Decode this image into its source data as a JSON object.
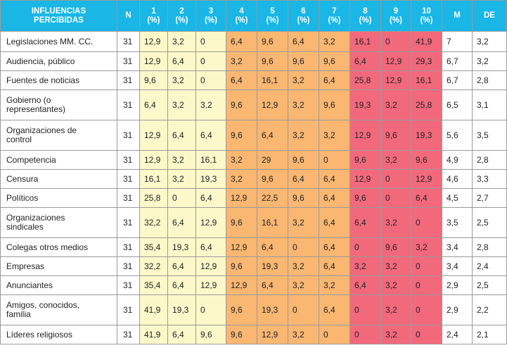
{
  "headers": [
    "INFLUENCIAS PERCIBIDAS",
    "N",
    "1 (%)",
    "2 (%)",
    "3 (%)",
    "4 (%)",
    "5 (%)",
    "6 (%)",
    "7 (%)",
    "8 (%)",
    "9 (%)",
    "10 (%)",
    "M",
    "DE"
  ],
  "header_lines": [
    [
      "INFLUENCIAS",
      "PERCIBIDAS"
    ],
    [
      "N",
      ""
    ],
    [
      "1",
      "(%)"
    ],
    [
      "2",
      "(%)"
    ],
    [
      "3",
      "(%)"
    ],
    [
      "4",
      "(%)"
    ],
    [
      "5",
      "(%)"
    ],
    [
      "6",
      "(%)"
    ],
    [
      "7",
      "(%)"
    ],
    [
      "8",
      "(%)"
    ],
    [
      "9",
      "(%)"
    ],
    [
      "10",
      "(%)"
    ],
    [
      "M",
      ""
    ],
    [
      "DE",
      ""
    ]
  ],
  "colors": {
    "header": "#19b6e6",
    "group_1_3": "#fcf8c9",
    "group_4_7": "#f9b772",
    "group_8_10": "#f3697c"
  },
  "rows": [
    {
      "label": "Legislaciones MM. CC.",
      "n": "31",
      "v": [
        "12,9",
        "3,2",
        "0",
        "6,4",
        "9,6",
        "6,4",
        "3,2",
        "16,1",
        "0",
        "41,9"
      ],
      "m": "7",
      "de": "3,2"
    },
    {
      "label": "Audiencia, público",
      "n": "31",
      "v": [
        "12,9",
        "6,4",
        "0",
        "3,2",
        "9,6",
        "9,6",
        "9,6",
        "6,4",
        "12,9",
        "29,3"
      ],
      "m": "6,7",
      "de": "3,2"
    },
    {
      "label": "Fuentes de noticias",
      "n": "31",
      "v": [
        "9,6",
        "3,2",
        "0",
        "6,4",
        "16,1",
        "3,2",
        "6,4",
        "25,8",
        "12,9",
        "16,1"
      ],
      "m": "6,7",
      "de": "2,8"
    },
    {
      "label": "Gobierno (o representantes)",
      "n": "31",
      "v": [
        "6,4",
        "3,2",
        "3,2",
        "9,6",
        "12,9",
        "3,2",
        "9,6",
        "19,3",
        "3,2",
        "25,8"
      ],
      "m": "6,5",
      "de": "3,1"
    },
    {
      "label": "Organizaciones de control",
      "n": "31",
      "v": [
        "12,9",
        "6,4",
        "6,4",
        "9,6",
        "6,4",
        "3,2",
        "3,2",
        "12,9",
        "9,6",
        "19,3"
      ],
      "m": "5,6",
      "de": "3,5"
    },
    {
      "label": "Competencia",
      "n": "31",
      "v": [
        "12,9",
        "3,2",
        "16,1",
        "3,2",
        "29",
        "9,6",
        "0",
        "9,6",
        "3,2",
        "9,6"
      ],
      "m": "4,9",
      "de": "2,8"
    },
    {
      "label": "Censura",
      "n": "31",
      "v": [
        "16,1",
        "3,2",
        "19,3",
        "3,2",
        "9,6",
        "6,4",
        "6,4",
        "12,9",
        "0",
        "12,9"
      ],
      "m": "4,6",
      "de": "3,3"
    },
    {
      "label": "Políticos",
      "n": "31",
      "v": [
        "25,8",
        "0",
        "6,4",
        "12,9",
        "22,5",
        "9,6",
        "6,4",
        "9,6",
        "0",
        "6,4"
      ],
      "m": "4,5",
      "de": "2,7"
    },
    {
      "label": "Organizaciones sindicales",
      "n": "31",
      "v": [
        "32,2",
        "6,4",
        "12,9",
        "9,6",
        "16,1",
        "3,2",
        "6,4",
        "6,4",
        "3,2",
        "0"
      ],
      "m": "3,5",
      "de": "2,5"
    },
    {
      "label": "Colegas otros medios",
      "n": "31",
      "v": [
        "35,4",
        "19,3",
        "6,4",
        "12,9",
        "6,4",
        "0",
        "6,4",
        "0",
        "9,6",
        "3,2"
      ],
      "m": "3,4",
      "de": "2,8"
    },
    {
      "label": "Empresas",
      "n": "31",
      "v": [
        "32,2",
        "6,4",
        "12,9",
        "9,6",
        "19,3",
        "3,2",
        "6,4",
        "3,2",
        "3,2",
        "0"
      ],
      "m": "3,4",
      "de": "2,4"
    },
    {
      "label": "Anunciantes",
      "n": "31",
      "v": [
        "35,4",
        "6,4",
        "12,9",
        "12,9",
        "6,4",
        "3,2",
        "3,2",
        "6,4",
        "3,2",
        "0"
      ],
      "m": "2,9",
      "de": "2,5"
    },
    {
      "label": "Amigos, conocidos, familia",
      "n": "31",
      "v": [
        "41,9",
        "19,3",
        "0",
        "9,6",
        "19,3",
        "0",
        "6,4",
        "0",
        "3,2",
        "0"
      ],
      "m": "2,9",
      "de": "2,2"
    },
    {
      "label": "Líderes religiosos",
      "n": "31",
      "v": [
        "41,9",
        "6,4",
        "9,6",
        "9,6",
        "12,9",
        "3,2",
        "0",
        "0",
        "3,2",
        "0"
      ],
      "m": "2,4",
      "de": "2,1"
    }
  ],
  "row_labels_display": [
    [
      "Legislaciones MM. CC."
    ],
    [
      "Audiencia, público"
    ],
    [
      "Fuentes de noticias"
    ],
    [
      "Gobierno (o",
      "representantes)"
    ],
    [
      "Organizaciones de",
      "control"
    ],
    [
      "Competencia"
    ],
    [
      "Censura"
    ],
    [
      "Políticos"
    ],
    [
      "Organizaciones",
      "sindicales"
    ],
    [
      "Colegas otros medios"
    ],
    [
      "Empresas"
    ],
    [
      "Anunciantes"
    ],
    [
      "Amigos, conocidos,",
      "familia"
    ],
    [
      "Líderes religiosos"
    ]
  ]
}
